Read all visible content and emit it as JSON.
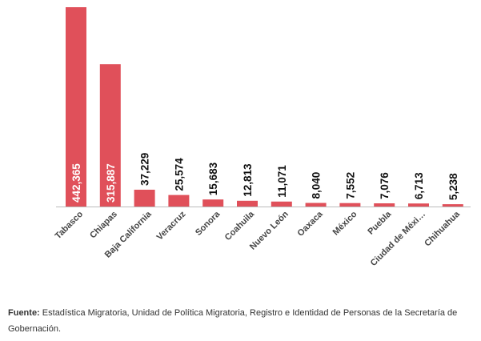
{
  "chart_data": {
    "type": "bar",
    "categories": [
      "Tabasco",
      "Chiapas",
      "Baja California",
      "Veracruz",
      "Sonora",
      "Coahuila",
      "Nuevo León",
      "Oaxaca",
      "México",
      "Puebla",
      "Ciudad de Méxi…",
      "Chihuahua"
    ],
    "values": [
      442365,
      315887,
      37229,
      25574,
      15683,
      12813,
      11071,
      8040,
      7552,
      7076,
      6713,
      5238
    ],
    "value_labels": [
      "442,365",
      "315,887",
      "37,229",
      "25,574",
      "15,683",
      "12,813",
      "11,071",
      "8,040",
      "7,552",
      "7,076",
      "6,713",
      "5,238"
    ],
    "ylim": [
      0,
      442365
    ],
    "grid": false,
    "bar_color": "#e0505a"
  },
  "source": {
    "label": "Fuente:",
    "text": "Estadística Migratoria, Unidad de Política Migratoria, Registro e Identidad de Personas de la Secretaría de Gobernación."
  }
}
